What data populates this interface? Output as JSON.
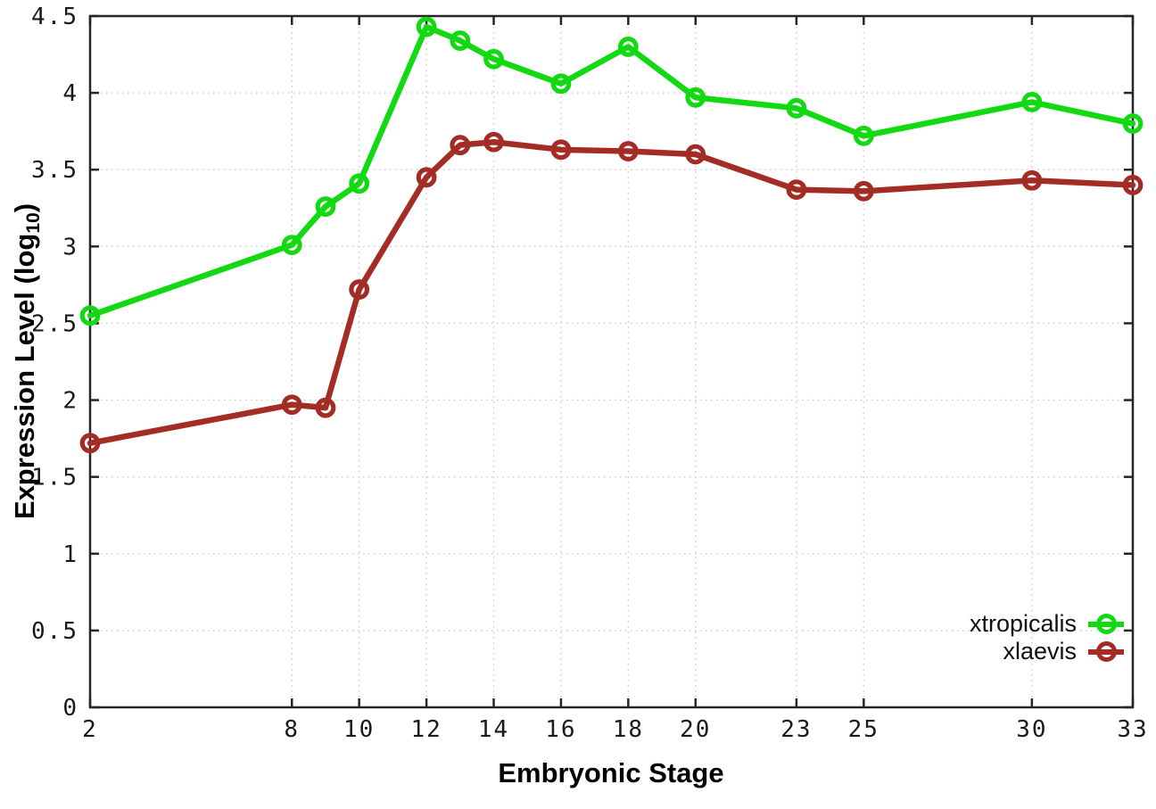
{
  "chart_data": {
    "type": "line",
    "title": "",
    "xlabel": "Embryonic Stage",
    "ylabel": "Expression Level (log10)",
    "ylabel_parts": {
      "main": "Expression Level (log",
      "sub": "10",
      "close": ")"
    },
    "xlim": [
      2,
      33
    ],
    "ylim": [
      0,
      4.5
    ],
    "x_ticks": [
      2,
      8,
      10,
      12,
      14,
      16,
      18,
      20,
      23,
      25,
      30,
      33
    ],
    "y_ticks": [
      0,
      0.5,
      1,
      1.5,
      2,
      2.5,
      3,
      3.5,
      4,
      4.5
    ],
    "grid": true,
    "grid_style": "dotted",
    "legend_position": "bottom-right",
    "marker": "open-circle",
    "x": [
      2,
      8,
      9,
      10,
      12,
      13,
      14,
      16,
      18,
      20,
      23,
      25,
      30,
      33
    ],
    "series": [
      {
        "name": "xtropicalis",
        "color": "#12d912",
        "values": [
          2.55,
          3.01,
          3.26,
          3.41,
          4.43,
          4.34,
          4.22,
          4.06,
          4.3,
          3.97,
          3.9,
          3.72,
          3.94,
          3.8
        ]
      },
      {
        "name": "xlaevis",
        "color": "#a32c25",
        "values": [
          1.72,
          1.97,
          1.95,
          2.72,
          3.45,
          3.66,
          3.68,
          3.63,
          3.62,
          3.6,
          3.37,
          3.36,
          3.43,
          3.4
        ]
      }
    ]
  },
  "colors": {
    "background": "#ffffff",
    "border": "#262626",
    "grid": "#c9c9c9",
    "text": "#1a1a1a"
  }
}
